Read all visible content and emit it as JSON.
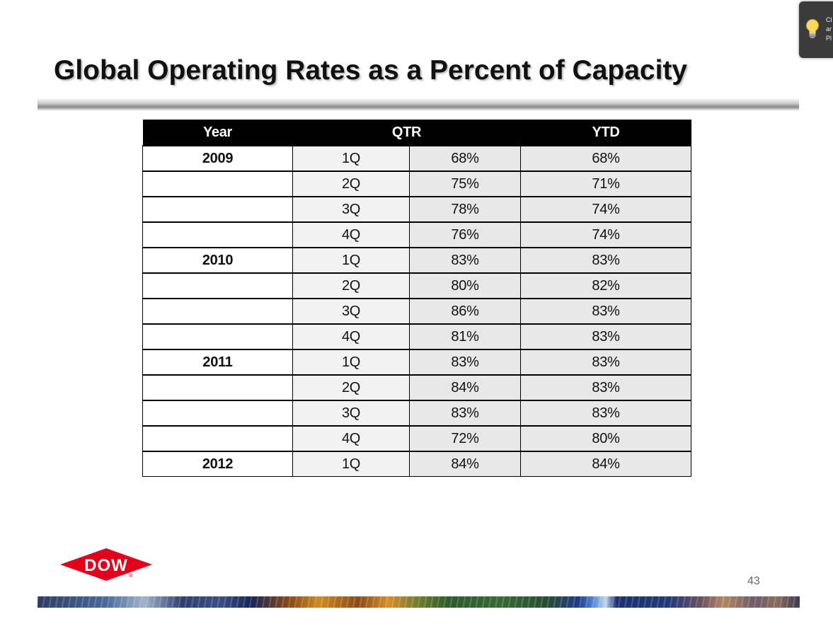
{
  "slide": {
    "title": "Global Operating Rates as a Percent of Capacity",
    "page_number": "43"
  },
  "tooltip": {
    "text": "Cl\nar\nPl",
    "icon": "lightbulb-icon"
  },
  "table": {
    "headers": {
      "year": "Year",
      "qtr": "QTR",
      "ytd": "YTD"
    },
    "rows": [
      {
        "year": "2009",
        "quarter": "1Q",
        "qtr": "68%",
        "ytd": "68%"
      },
      {
        "year": "",
        "quarter": "2Q",
        "qtr": "75%",
        "ytd": "71%"
      },
      {
        "year": "",
        "quarter": "3Q",
        "qtr": "78%",
        "ytd": "74%"
      },
      {
        "year": "",
        "quarter": "4Q",
        "qtr": "76%",
        "ytd": "74%"
      },
      {
        "year": "2010",
        "quarter": "1Q",
        "qtr": "83%",
        "ytd": "83%"
      },
      {
        "year": "",
        "quarter": "2Q",
        "qtr": "80%",
        "ytd": "82%"
      },
      {
        "year": "",
        "quarter": "3Q",
        "qtr": "86%",
        "ytd": "83%"
      },
      {
        "year": "",
        "quarter": "4Q",
        "qtr": "81%",
        "ytd": "83%"
      },
      {
        "year": "2011",
        "quarter": "1Q",
        "qtr": "83%",
        "ytd": "83%"
      },
      {
        "year": "",
        "quarter": "2Q",
        "qtr": "84%",
        "ytd": "83%"
      },
      {
        "year": "",
        "quarter": "3Q",
        "qtr": "83%",
        "ytd": "83%"
      },
      {
        "year": "",
        "quarter": "4Q",
        "qtr": "72%",
        "ytd": "80%"
      },
      {
        "year": "2012",
        "quarter": "1Q",
        "qtr": "84%",
        "ytd": "84%"
      }
    ]
  },
  "logo": {
    "text": "DOW",
    "registered_mark": "®",
    "color": "#e2001a"
  },
  "colors": {
    "header_bg": "#000000",
    "cell_light": "#f2f2f2",
    "cell_grey": "#e8e8e8"
  }
}
